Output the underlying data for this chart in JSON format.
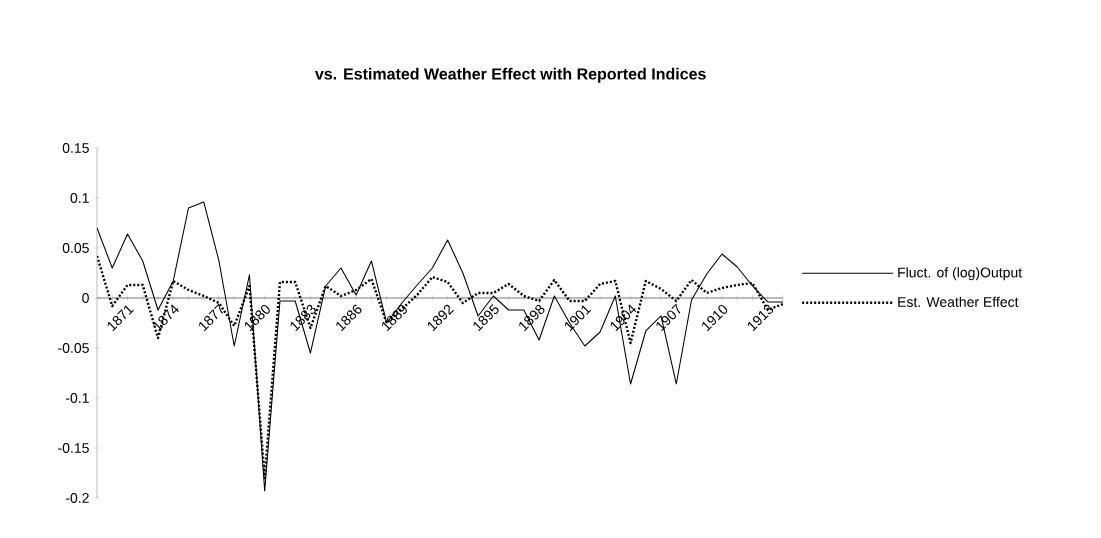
{
  "chart_data": {
    "type": "line",
    "title": "vs. Estimated Weather Effect with Reported Indices",
    "categories": [
      null,
      null,
      "1871",
      null,
      null,
      "1874",
      null,
      null,
      "1877",
      null,
      null,
      "1880",
      null,
      null,
      "1883",
      null,
      null,
      "1886",
      null,
      null,
      "1889",
      null,
      null,
      "1892",
      null,
      null,
      "1895",
      null,
      null,
      "1898",
      null,
      null,
      "1901",
      null,
      null,
      "1904",
      null,
      null,
      "1907",
      null,
      null,
      "1910",
      null,
      null,
      "1913",
      null
    ],
    "series": [
      {
        "name": "Fluct. of (log)Output",
        "color": "#000000",
        "line_style": "solid",
        "values": [
          0.07,
          0.03,
          0.064,
          0.037,
          -0.012,
          0.017,
          0.09,
          0.096,
          0.037,
          -0.048,
          0.023,
          -0.193,
          -0.003,
          -0.003,
          -0.055,
          0.012,
          0.03,
          0.003,
          0.037,
          -0.025,
          -0.005,
          0.013,
          0.03,
          0.058,
          0.025,
          -0.018,
          0.002,
          -0.012,
          -0.012,
          -0.042,
          0.002,
          -0.025,
          -0.048,
          -0.034,
          0.002,
          -0.086,
          -0.033,
          -0.018,
          -0.086,
          -0.002,
          0.024,
          0.044,
          0.031,
          0.012,
          -0.004,
          -0.004
        ]
      },
      {
        "name": "Est. Weather Effect",
        "color": "#000000",
        "line_style": "dotted",
        "values": [
          0.042,
          -0.008,
          0.013,
          0.013,
          -0.04,
          0.017,
          0.008,
          0.002,
          -0.005,
          -0.028,
          0.012,
          -0.18,
          0.016,
          0.016,
          -0.03,
          0.012,
          0.002,
          0.008,
          0.019,
          -0.025,
          -0.011,
          0.003,
          0.021,
          0.016,
          -0.005,
          0.005,
          0.005,
          0.014,
          0.002,
          -0.003,
          0.018,
          -0.003,
          -0.003,
          0.014,
          0.017,
          -0.045,
          0.017,
          0.009,
          -0.003,
          0.018,
          0.005,
          0.01,
          0.013,
          0.015,
          -0.012,
          -0.006
        ]
      }
    ],
    "ylim": [
      -0.2,
      0.15
    ],
    "yticks": [
      0.15,
      0.1,
      0.05,
      0,
      -0.05,
      -0.1,
      -0.15,
      -0.2
    ],
    "legend": "right",
    "marker": "none"
  }
}
